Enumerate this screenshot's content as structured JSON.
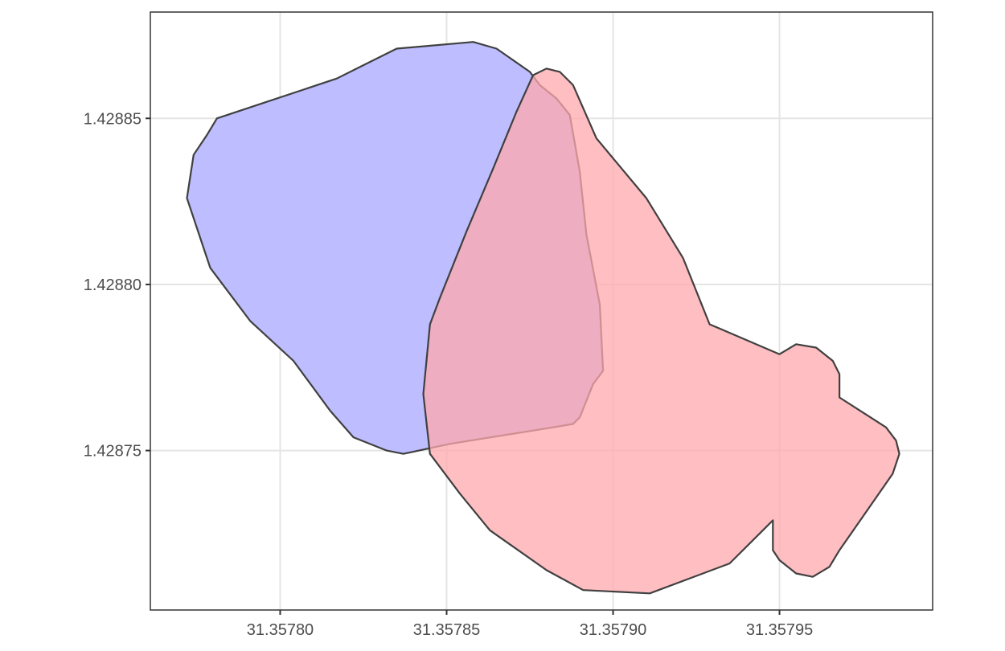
{
  "chart_data": {
    "type": "map-polygons",
    "title": "",
    "xlabel": "",
    "ylabel": "",
    "xlim": [
      31.357761,
      31.357996
    ],
    "ylim": [
      1.428702,
      1.428882
    ],
    "grid": true,
    "x_ticks": [
      31.3578,
      31.35785,
      31.3579,
      31.35795
    ],
    "x_tick_labels": [
      "31.35780",
      "31.35785",
      "31.35790",
      "31.35795"
    ],
    "y_ticks": [
      1.42875,
      1.4288,
      1.42885
    ],
    "y_tick_labels": [
      "1.42875",
      "1.42880",
      "1.42885"
    ],
    "colors": {
      "grid": "#e5e5e5",
      "axis": "#333333",
      "outline": "#404040",
      "tick_text": "#4d4d4d"
    },
    "series": [
      {
        "fill": "#bdbdff",
        "opacity": 1,
        "points": [
          [
            31.357835,
            1.428871
          ],
          [
            31.357858,
            1.428873
          ],
          [
            31.357865,
            1.428871
          ],
          [
            31.357875,
            1.428864
          ],
          [
            31.357878,
            1.42886
          ],
          [
            31.357883,
            1.428856
          ],
          [
            31.357887,
            1.428851
          ],
          [
            31.35789,
            1.428834
          ],
          [
            31.357892,
            1.428815
          ],
          [
            31.357896,
            1.428794
          ],
          [
            31.357897,
            1.428774
          ],
          [
            31.357894,
            1.42877
          ],
          [
            31.35789,
            1.42876
          ],
          [
            31.357888,
            1.428758
          ],
          [
            31.357882,
            1.428757
          ],
          [
            31.357851,
            1.428752
          ],
          [
            31.357837,
            1.428749
          ],
          [
            31.357832,
            1.42875
          ],
          [
            31.357822,
            1.428754
          ],
          [
            31.357815,
            1.428762
          ],
          [
            31.357804,
            1.428777
          ],
          [
            31.357791,
            1.428789
          ],
          [
            31.357779,
            1.428805
          ],
          [
            31.357772,
            1.428826
          ],
          [
            31.357774,
            1.428839
          ],
          [
            31.357778,
            1.428845
          ],
          [
            31.357781,
            1.42885
          ],
          [
            31.357817,
            1.428862
          ],
          [
            31.357825,
            1.428866
          ],
          [
            31.357835,
            1.428871
          ]
        ]
      },
      {
        "fill": "#ffa8ac",
        "opacity": 0.75,
        "points": [
          [
            31.357876,
            1.428863
          ],
          [
            31.35788,
            1.428865
          ],
          [
            31.357884,
            1.428864
          ],
          [
            31.357888,
            1.42886
          ],
          [
            31.357895,
            1.428844
          ],
          [
            31.35791,
            1.428826
          ],
          [
            31.357921,
            1.428808
          ],
          [
            31.357929,
            1.428788
          ],
          [
            31.35795,
            1.428779
          ],
          [
            31.357955,
            1.428782
          ],
          [
            31.357961,
            1.428781
          ],
          [
            31.357966,
            1.428777
          ],
          [
            31.357968,
            1.428773
          ],
          [
            31.357968,
            1.428766
          ],
          [
            31.357982,
            1.428757
          ],
          [
            31.357985,
            1.428753
          ],
          [
            31.357986,
            1.428749
          ],
          [
            31.357984,
            1.428743
          ],
          [
            31.357968,
            1.42872
          ],
          [
            31.357965,
            1.428715
          ],
          [
            31.35796,
            1.428712
          ],
          [
            31.357955,
            1.428713
          ],
          [
            31.35795,
            1.428717
          ],
          [
            31.357948,
            1.42872
          ],
          [
            31.357948,
            1.428729
          ],
          [
            31.357946,
            1.428727
          ],
          [
            31.357935,
            1.428716
          ],
          [
            31.357911,
            1.428707
          ],
          [
            31.357891,
            1.428708
          ],
          [
            31.35788,
            1.428714
          ],
          [
            31.357863,
            1.428726
          ],
          [
            31.357854,
            1.428737
          ],
          [
            31.357845,
            1.428749
          ],
          [
            31.357843,
            1.428767
          ],
          [
            31.357845,
            1.428788
          ],
          [
            31.357848,
            1.428796
          ],
          [
            31.357856,
            1.428816
          ],
          [
            31.357864,
            1.428835
          ],
          [
            31.357871,
            1.428852
          ],
          [
            31.357876,
            1.428863
          ]
        ]
      }
    ]
  }
}
